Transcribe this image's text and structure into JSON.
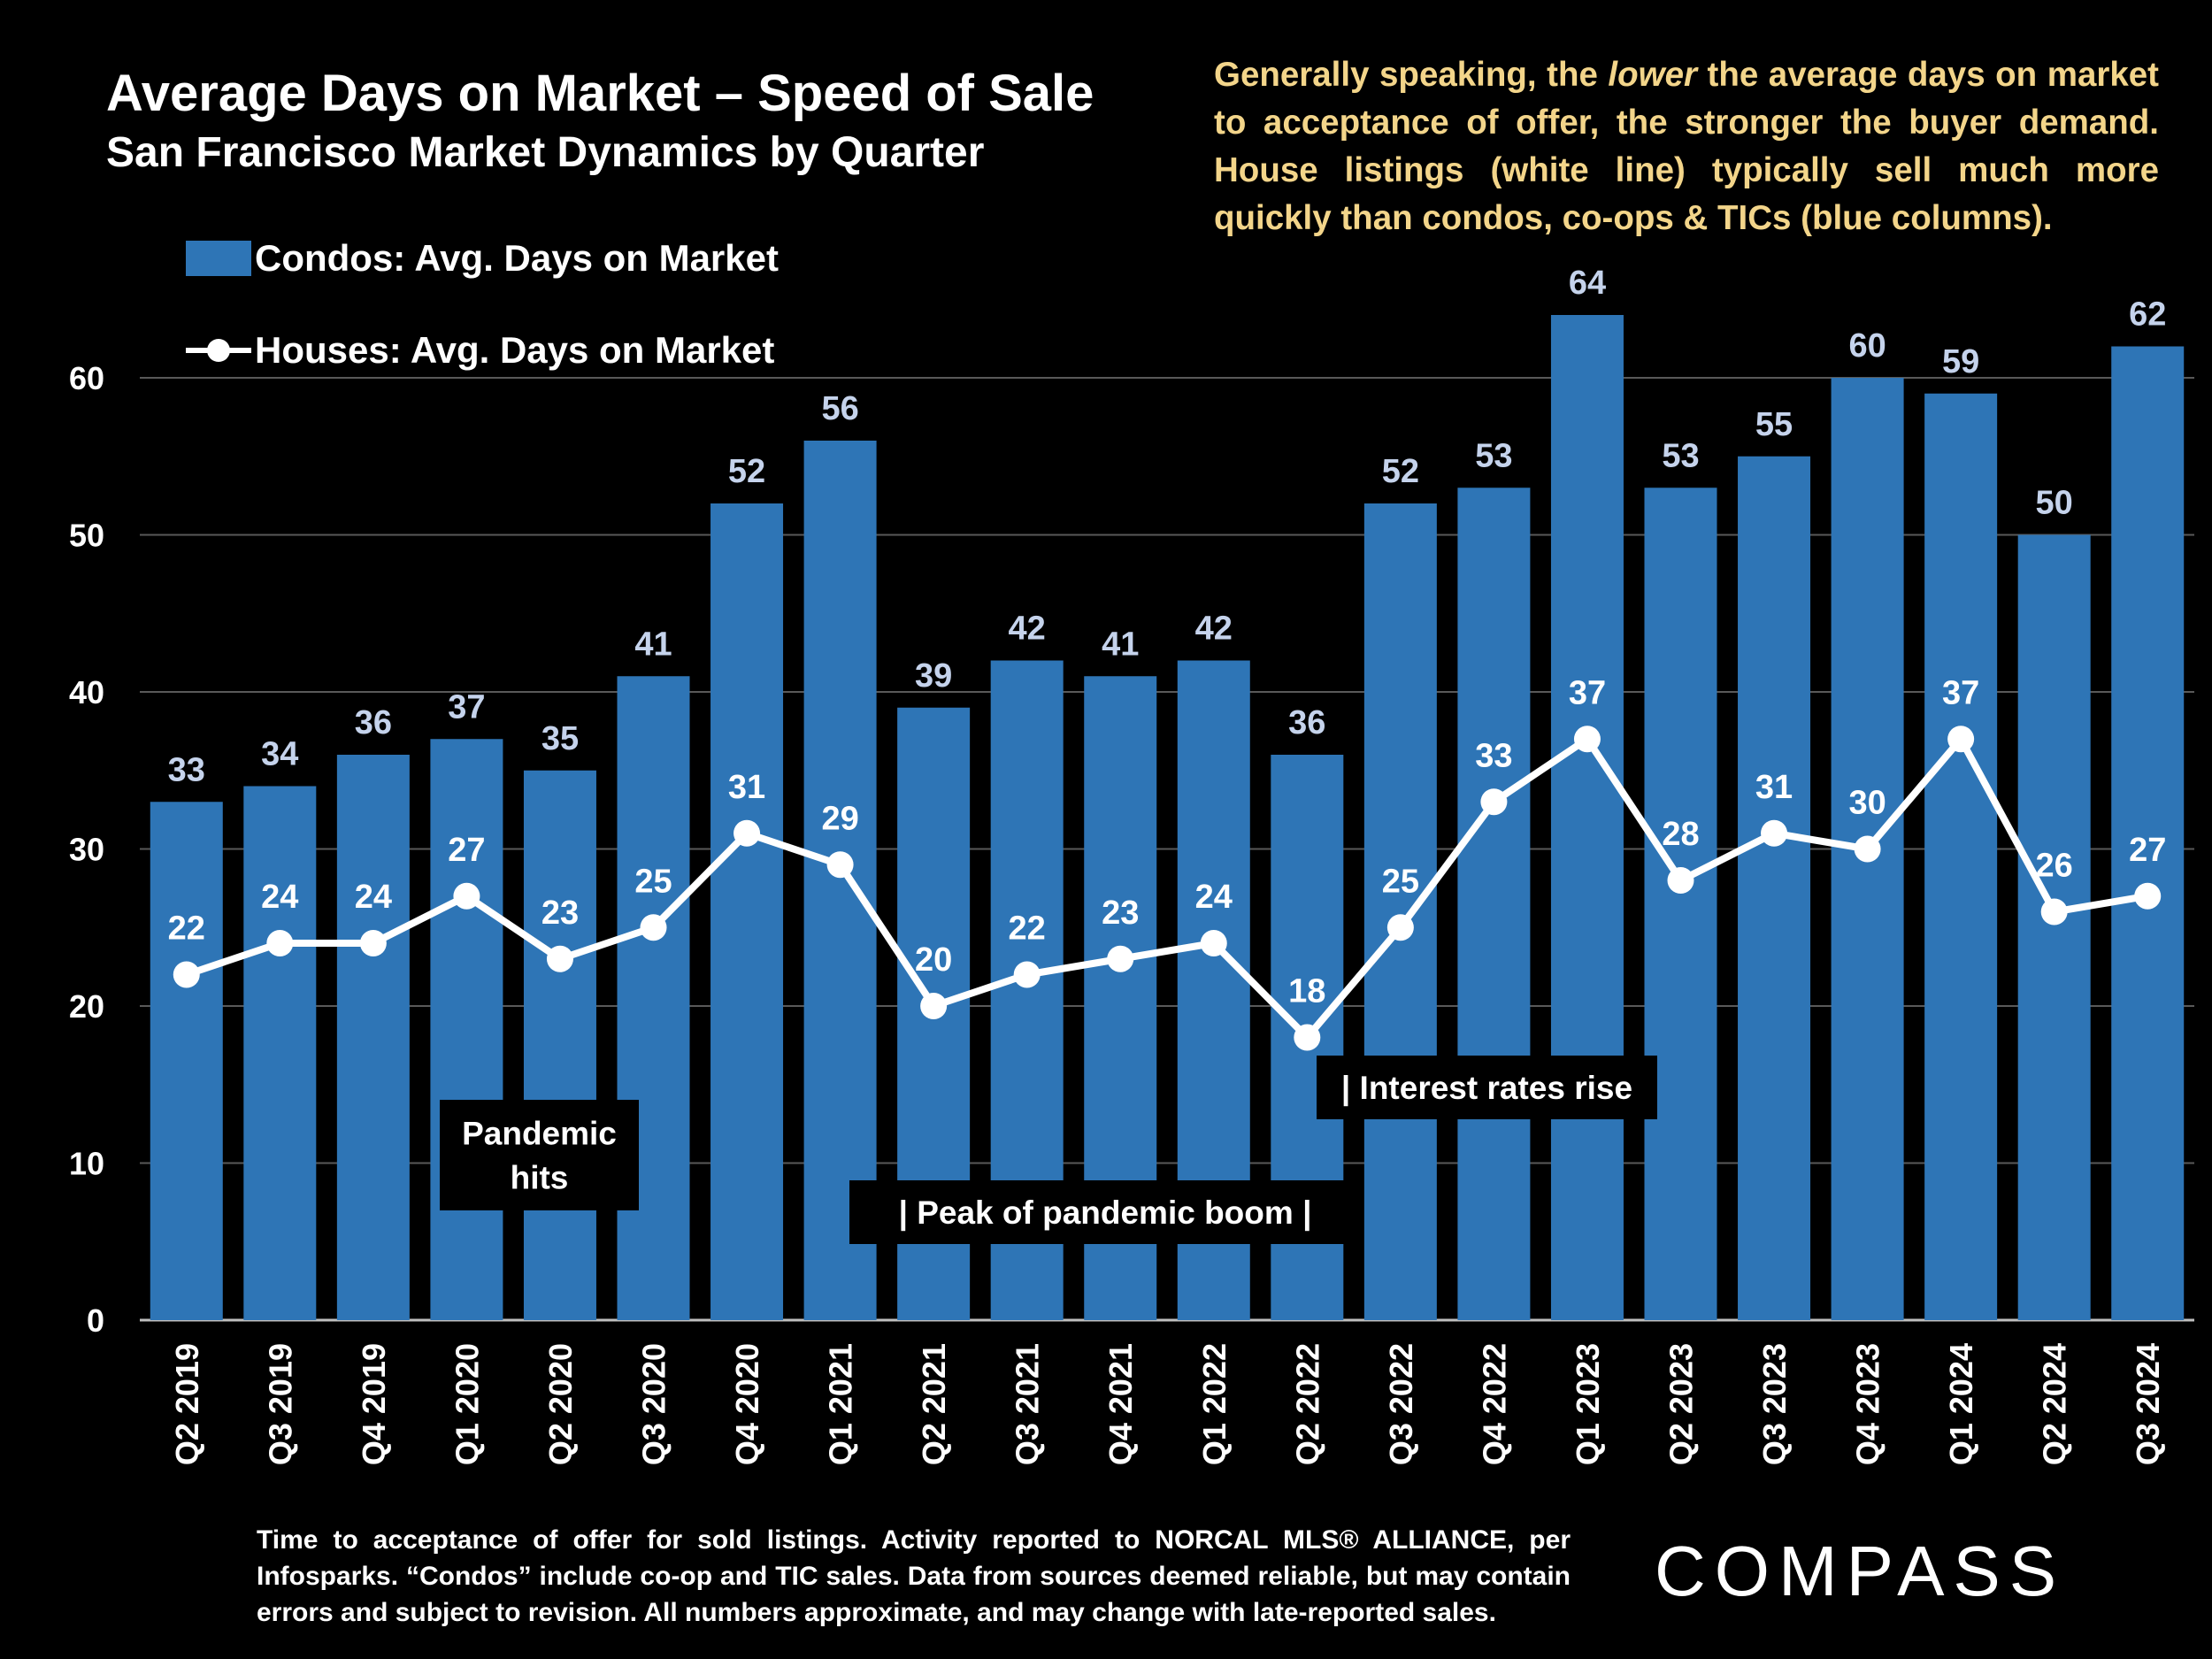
{
  "title": "Average Days on Market – Speed of Sale",
  "subtitle": "San Francisco Market Dynamics by Quarter",
  "note": {
    "part1": "Generally speaking, the ",
    "emphasis": "lower",
    "part2": " the average days on market to acceptance of offer, the stronger the buyer demand.  House listings (white line) typically sell much more quickly than condos, co-ops & TICs (blue columns)."
  },
  "footnote": "Time to acceptance of offer for sold listings. Activity reported to NORCAL MLS® ALLIANCE, per Infosparks. “Condos” include co-op and TIC sales. Data from sources deemed reliable, but may contain errors and subject to revision. All numbers approximate, and may change with late-reported sales.",
  "logo": "COMPASS",
  "colors": {
    "background": "#000000",
    "bars": "#2e75b6",
    "bar_labels": "#c5d3ec",
    "line": "#ffffff",
    "note_text": "#f3d58a"
  },
  "annotations": [
    {
      "id": "pandemic",
      "lines": [
        "Pandemic",
        "hits"
      ]
    },
    {
      "id": "peak",
      "lines": [
        "|    Peak of pandemic boom     |"
      ]
    },
    {
      "id": "rates",
      "lines": [
        "| Interest rates rise"
      ]
    }
  ],
  "chart_data": {
    "type": "bar",
    "categories": [
      "Q2 2019",
      "Q3 2019",
      "Q4 2019",
      "Q1 2020",
      "Q2 2020",
      "Q3 2020",
      "Q4 2020",
      "Q1 2021",
      "Q2 2021",
      "Q3 2021",
      "Q4 2021",
      "Q1 2022",
      "Q2 2022",
      "Q3 2022",
      "Q4 2022",
      "Q1 2023",
      "Q2 2023",
      "Q3 2023",
      "Q4 2023",
      "Q1 2024",
      "Q2 2024",
      "Q3 2024"
    ],
    "series": [
      {
        "name": "Condos: Avg. Days on Market",
        "type": "bar",
        "values": [
          33,
          34,
          36,
          37,
          35,
          41,
          52,
          56,
          39,
          42,
          41,
          42,
          36,
          52,
          53,
          64,
          53,
          55,
          60,
          59,
          50,
          62
        ]
      },
      {
        "name": "Houses: Avg. Days on Market",
        "type": "line",
        "values": [
          22,
          24,
          24,
          27,
          23,
          25,
          31,
          29,
          20,
          22,
          23,
          24,
          18,
          25,
          33,
          37,
          28,
          31,
          30,
          37,
          26,
          27
        ]
      }
    ],
    "yticks": [
      0,
      10,
      20,
      30,
      40,
      50,
      60
    ],
    "ylim": [
      0,
      60
    ],
    "grid": true,
    "legend": "top-left"
  }
}
